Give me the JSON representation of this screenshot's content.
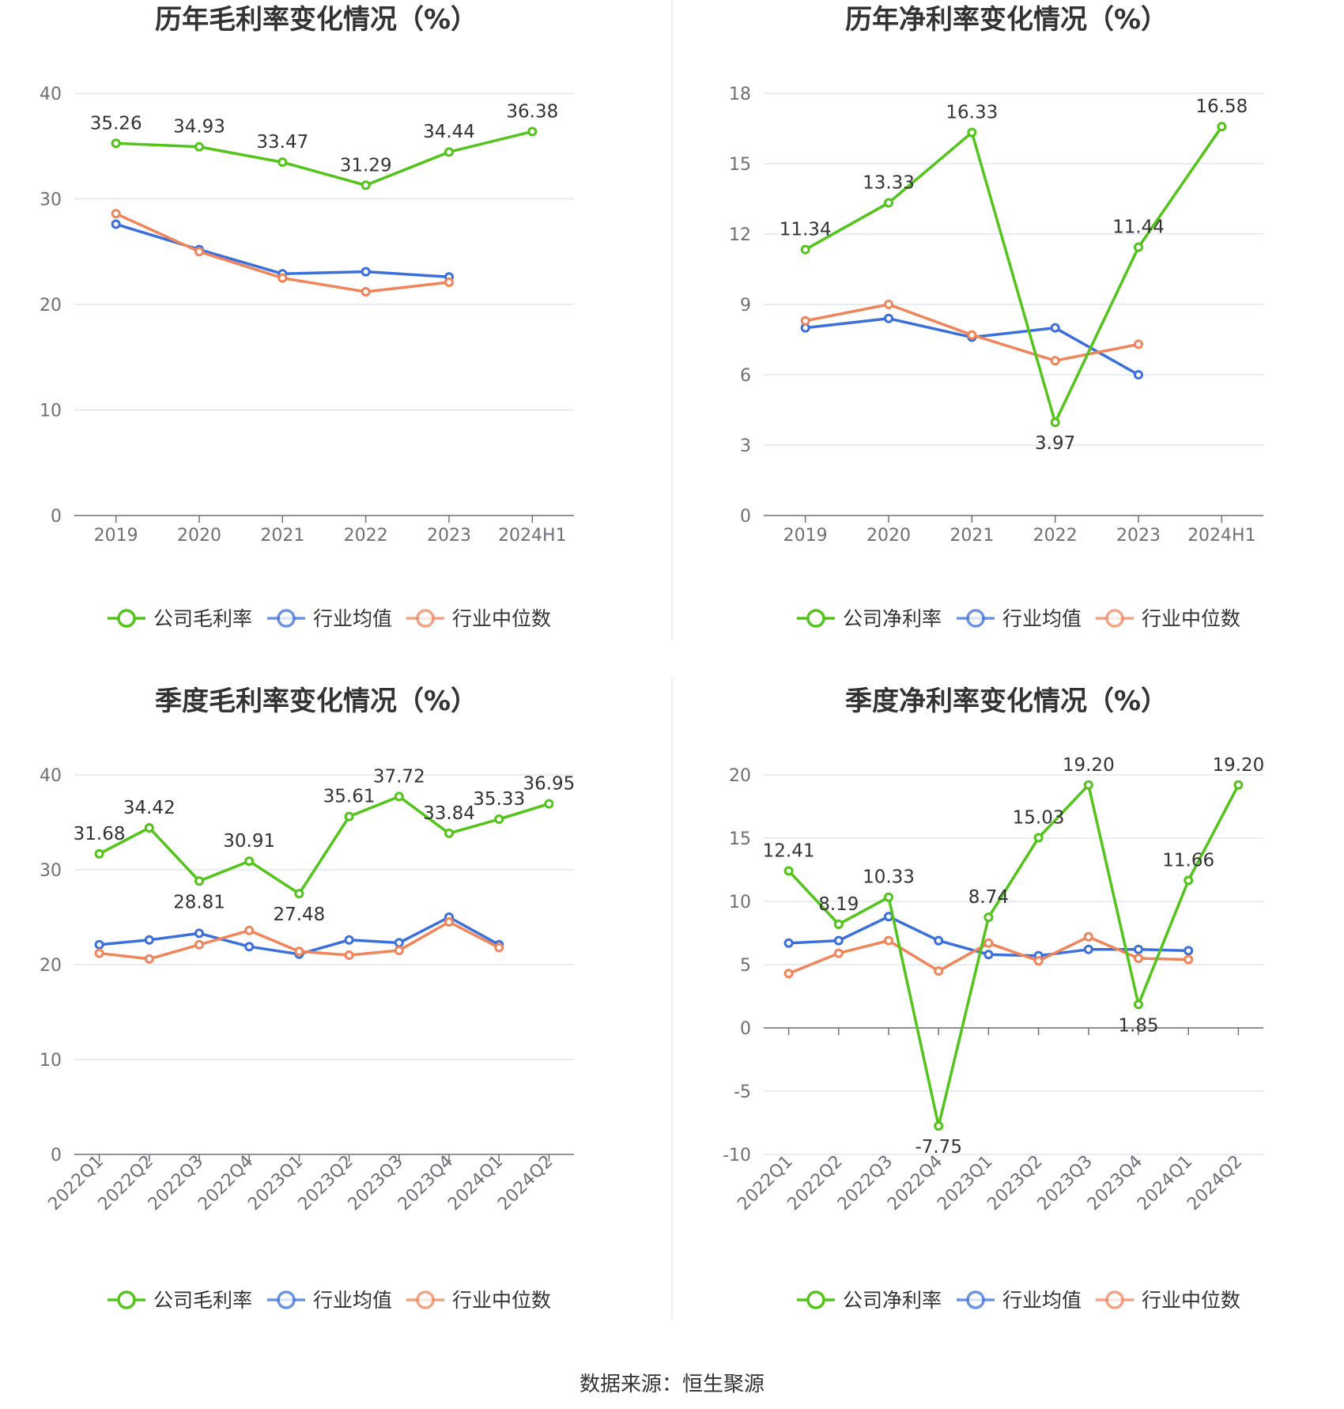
{
  "source_text": "数据来源：恒生聚源",
  "colors": {
    "company": "#52c41a",
    "avg": "#3a6fdc",
    "median": "#f0845a",
    "grid": "#e0e6f1",
    "axis": "#6e7079"
  },
  "legend_labels": {
    "gross": [
      "公司毛利率",
      "行业均值",
      "行业中位数"
    ],
    "net": [
      "公司净利率",
      "行业均值",
      "行业中位数"
    ]
  },
  "chart_data": [
    {
      "type": "line",
      "title": "历年毛利率变化情况（%）",
      "categories": [
        "2019",
        "2020",
        "2021",
        "2022",
        "2023",
        "2024H1"
      ],
      "ylim": [
        0,
        40
      ],
      "yticks": [
        0,
        10,
        20,
        30,
        40
      ],
      "grid": true,
      "legend_position": "bottom",
      "series": [
        {
          "name": "公司毛利率",
          "values": [
            35.26,
            34.93,
            33.47,
            31.29,
            34.44,
            36.38
          ],
          "labels": [
            "35.26",
            "34.93",
            "33.47",
            "31.29",
            "34.44",
            "36.38"
          ]
        },
        {
          "name": "行业均值",
          "values": [
            27.6,
            25.2,
            22.9,
            23.1,
            22.6,
            null
          ]
        },
        {
          "name": "行业中位数",
          "values": [
            28.6,
            25.0,
            22.5,
            21.2,
            22.1,
            null
          ]
        }
      ]
    },
    {
      "type": "line",
      "title": "历年净利率变化情况（%）",
      "categories": [
        "2019",
        "2020",
        "2021",
        "2022",
        "2023",
        "2024H1"
      ],
      "ylim": [
        0,
        18
      ],
      "yticks": [
        0,
        3,
        6,
        9,
        12,
        15,
        18
      ],
      "grid": true,
      "legend_position": "bottom",
      "series": [
        {
          "name": "公司净利率",
          "values": [
            11.34,
            13.33,
            16.33,
            3.97,
            11.44,
            16.58
          ],
          "labels": [
            "11.34",
            "13.33",
            "16.33",
            "3.97",
            "11.44",
            "16.58"
          ]
        },
        {
          "name": "行业均值",
          "values": [
            8.0,
            8.4,
            7.6,
            8.0,
            6.0,
            null
          ]
        },
        {
          "name": "行业中位数",
          "values": [
            8.3,
            9.0,
            7.7,
            6.6,
            7.3,
            null
          ]
        }
      ]
    },
    {
      "type": "line",
      "title": "季度毛利率变化情况（%）",
      "categories": [
        "2022Q1",
        "2022Q2",
        "2022Q3",
        "2022Q4",
        "2023Q1",
        "2023Q2",
        "2023Q3",
        "2023Q4",
        "2024Q1",
        "2024Q2"
      ],
      "ylim": [
        0,
        40
      ],
      "yticks": [
        0,
        10,
        20,
        30,
        40
      ],
      "grid": true,
      "legend_position": "bottom",
      "series": [
        {
          "name": "公司毛利率",
          "values": [
            31.68,
            34.42,
            28.81,
            30.91,
            27.48,
            35.61,
            37.72,
            33.84,
            35.33,
            36.95
          ],
          "labels": [
            "31.68",
            "34.42",
            "28.81",
            "30.91",
            "27.48",
            "35.61",
            "37.72",
            "33.84",
            "35.33",
            "36.95"
          ]
        },
        {
          "name": "行业均值",
          "values": [
            22.1,
            22.6,
            23.3,
            21.9,
            21.1,
            22.6,
            22.3,
            25.0,
            22.1,
            null
          ]
        },
        {
          "name": "行业中位数",
          "values": [
            21.2,
            20.6,
            22.1,
            23.6,
            21.4,
            21.0,
            21.5,
            24.5,
            21.8,
            null
          ]
        }
      ]
    },
    {
      "type": "line",
      "title": "季度净利率变化情况（%）",
      "categories": [
        "2022Q1",
        "2022Q2",
        "2022Q3",
        "2022Q4",
        "2023Q1",
        "2023Q2",
        "2023Q3",
        "2023Q4",
        "2024Q1",
        "2024Q2"
      ],
      "ylim": [
        -10,
        20
      ],
      "yticks": [
        -10,
        -5,
        0,
        5,
        10,
        15,
        20
      ],
      "grid": true,
      "legend_position": "bottom",
      "series": [
        {
          "name": "公司净利率",
          "values": [
            12.41,
            8.19,
            10.33,
            -7.75,
            8.74,
            15.03,
            19.2,
            1.85,
            11.66,
            19.2
          ],
          "labels": [
            "12.41",
            "8.19",
            "10.33",
            "-7.75",
            "8.74",
            "15.03",
            "19.20",
            "1.85",
            "11.66",
            "19.20"
          ]
        },
        {
          "name": "行业均值",
          "values": [
            6.7,
            6.9,
            8.8,
            6.9,
            5.8,
            5.7,
            6.2,
            6.2,
            6.1,
            null
          ]
        },
        {
          "name": "行业中位数",
          "values": [
            4.3,
            5.9,
            6.9,
            4.5,
            6.7,
            5.3,
            7.2,
            5.5,
            5.4,
            null
          ]
        }
      ]
    }
  ]
}
